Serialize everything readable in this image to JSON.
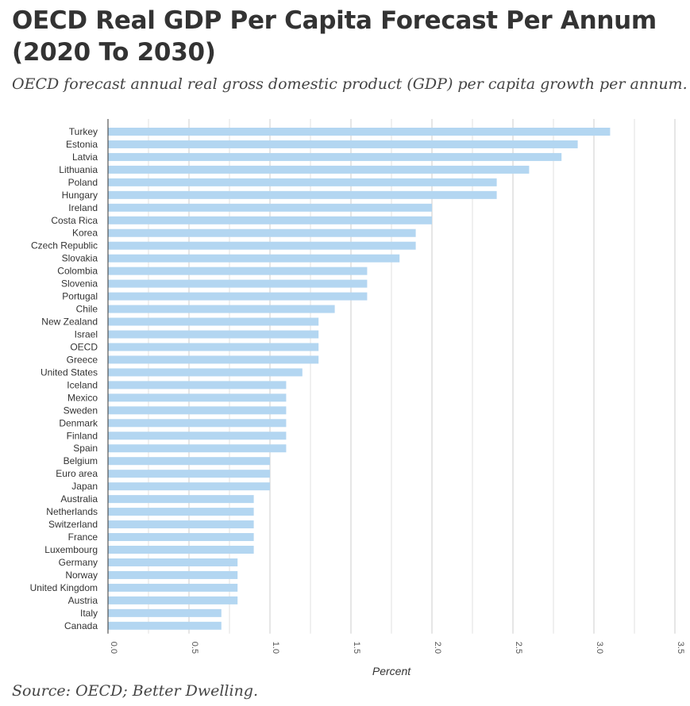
{
  "title": "OECD Real GDP Per Capita Forecast Per Annum (2020 To 2030)",
  "subtitle": "OECD forecast annual real gross domestic product (GDP) per capita growth per annum.",
  "source": "Source: OECD; Better Dwelling.",
  "chart_data": {
    "type": "bar",
    "orientation": "horizontal",
    "categories": [
      "Turkey",
      "Estonia",
      "Latvia",
      "Lithuania",
      "Poland",
      "Hungary",
      "Ireland",
      "Costa Rica",
      "Korea",
      "Czech Republic",
      "Slovakia",
      "Colombia",
      "Slovenia",
      "Portugal",
      "Chile",
      "New Zealand",
      "Israel",
      "OECD",
      "Greece",
      "United States",
      "Iceland",
      "Mexico",
      "Sweden",
      "Denmark",
      "Finland",
      "Spain",
      "Belgium",
      "Euro area",
      "Japan",
      "Australia",
      "Netherlands",
      "Switzerland",
      "France",
      "Luxembourg",
      "Germany",
      "Norway",
      "United Kingdom",
      "Austria",
      "Italy",
      "Canada"
    ],
    "values": [
      3.1,
      2.9,
      2.8,
      2.6,
      2.4,
      2.4,
      2.0,
      2.0,
      1.9,
      1.9,
      1.8,
      1.6,
      1.6,
      1.6,
      1.4,
      1.3,
      1.3,
      1.3,
      1.3,
      1.2,
      1.1,
      1.1,
      1.1,
      1.1,
      1.1,
      1.1,
      1.0,
      1.0,
      1.0,
      0.9,
      0.9,
      0.9,
      0.9,
      0.9,
      0.8,
      0.8,
      0.8,
      0.8,
      0.7,
      0.7
    ],
    "xlabel": "Percent",
    "ylabel": "",
    "xlim": [
      0,
      3.5
    ],
    "xticks": [
      0.0,
      0.5,
      1.0,
      1.5,
      2.0,
      2.5,
      3.0,
      3.5
    ],
    "xtick_labels": [
      "0.0",
      "0.5",
      "1.0",
      "1.5",
      "2.0",
      "2.5",
      "3.0",
      "3.5"
    ],
    "grid": true,
    "bar_color": "#b3d6f1",
    "grid_color": "#cccccc",
    "legend": "none"
  }
}
